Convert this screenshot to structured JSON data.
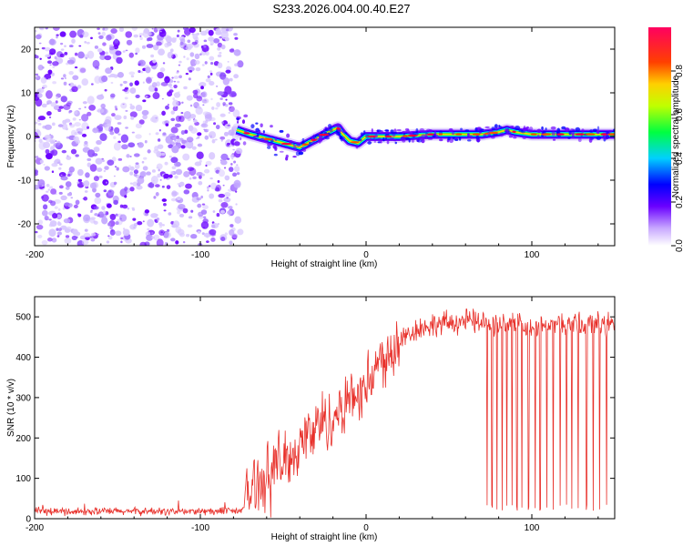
{
  "title": "S233.2026.004.00.40.E27",
  "chart_data": [
    {
      "type": "heatmap",
      "xlabel": "Height of straight line (km)",
      "ylabel": "Frequency (Hz)",
      "xlim": [
        -200,
        150
      ],
      "ylim": [
        -25,
        25
      ],
      "x_ticks": [
        -200,
        -100,
        0,
        100
      ],
      "x_tick_labels": [
        "-200",
        "-100",
        "0",
        "100"
      ],
      "y_ticks": [
        -20,
        -10,
        0,
        10,
        20
      ],
      "y_tick_labels": [
        "-20",
        "-10",
        "0",
        "10",
        "20"
      ],
      "noise_region_x": [
        -200,
        -78
      ],
      "ridge_x": [
        -78,
        -70,
        -60,
        -50,
        -45,
        -40,
        -35,
        -30,
        -25,
        -20,
        -17,
        -14,
        -10,
        -5,
        0,
        20,
        40,
        60,
        70,
        80,
        85,
        90,
        100,
        120,
        150
      ],
      "ridge_freq": [
        1.5,
        0.5,
        -0.5,
        -1.5,
        -2,
        -2.5,
        -1.5,
        -0.5,
        0.5,
        1.5,
        2,
        0.5,
        -1,
        -1.5,
        0,
        0,
        0.5,
        0.5,
        0.5,
        1,
        1.5,
        1,
        0.5,
        0.5,
        0.5
      ],
      "colorbar": {
        "label": "Normalized spectral amplitude",
        "range": [
          0,
          1
        ],
        "ticks": [
          0.0,
          0.2,
          0.4,
          0.6,
          0.8
        ],
        "tick_labels": [
          "0.0",
          "0.2",
          "0.4",
          "0.6",
          "0.8"
        ]
      }
    },
    {
      "type": "line",
      "xlabel": "Height of straight line (km)",
      "ylabel": "SNR (10 * v/v)",
      "xlim": [
        -200,
        150
      ],
      "ylim": [
        0,
        550
      ],
      "x_ticks": [
        -200,
        -100,
        0,
        100
      ],
      "x_tick_labels": [
        "-200",
        "-100",
        "0",
        "100"
      ],
      "y_ticks": [
        0,
        100,
        200,
        300,
        400,
        500
      ],
      "y_tick_labels": [
        "0",
        "100",
        "200",
        "300",
        "400",
        "500"
      ],
      "series_color": "#e8302a",
      "trend_x": [
        -200,
        -80,
        -75,
        -70,
        -60,
        -50,
        -40,
        -30,
        -20,
        -10,
        0,
        10,
        20,
        30,
        40,
        60,
        80,
        100,
        120,
        150
      ],
      "trend_y": [
        18,
        18,
        20,
        70,
        110,
        140,
        180,
        230,
        250,
        300,
        330,
        400,
        440,
        470,
        480,
        490,
        480,
        480,
        480,
        480
      ],
      "dropouts_x": [
        73,
        76,
        79,
        82,
        85,
        88,
        91,
        94,
        98,
        102,
        105,
        109,
        113,
        117,
        121,
        124,
        128,
        133,
        137,
        141,
        145
      ]
    }
  ]
}
